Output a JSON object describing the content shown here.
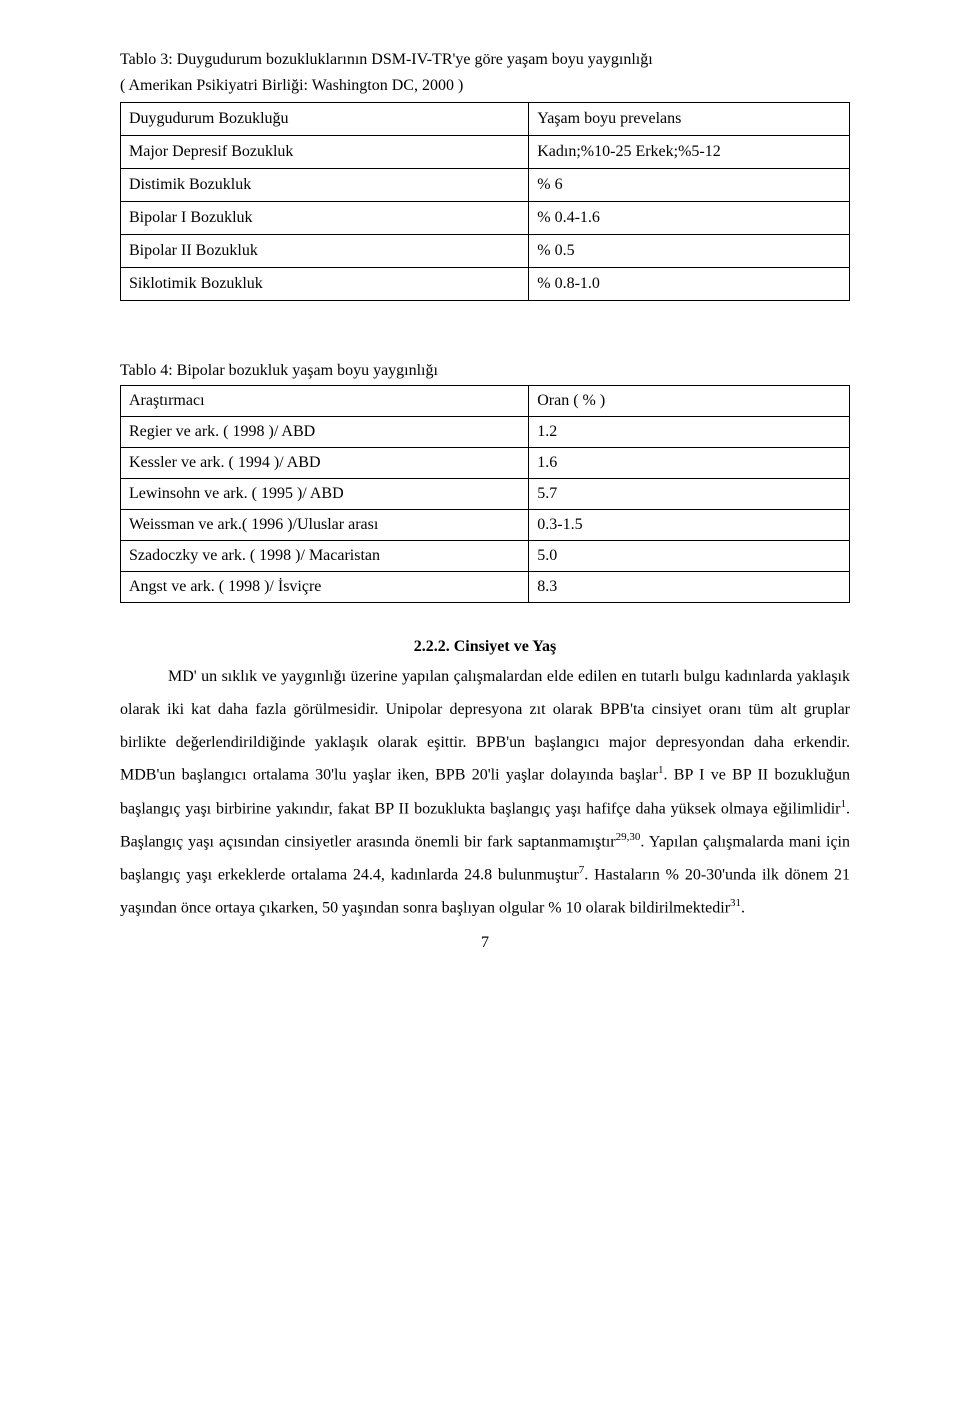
{
  "table3": {
    "heading": "Tablo 3: Duygudurum bozukluklarının DSM-IV-TR'ye göre yaşam boyu yaygınlığı",
    "subheading": "( Amerikan Psikiyatri Birliği: Washington DC, 2000 )",
    "rows": [
      {
        "c1": "Duygudurum Bozukluğu",
        "c2": "Yaşam boyu prevelans"
      },
      {
        "c1": "Major Depresif Bozukluk",
        "c2": "Kadın;%10-25 Erkek;%5-12"
      },
      {
        "c1": "Distimik Bozukluk",
        "c2": "% 6"
      },
      {
        "c1": "Bipolar I Bozukluk",
        "c2": "% 0.4-1.6"
      },
      {
        "c1": "Bipolar II Bozukluk",
        "c2": "% 0.5"
      },
      {
        "c1": "Siklotimik  Bozukluk",
        "c2": "% 0.8-1.0"
      }
    ]
  },
  "table4": {
    "heading": "Tablo 4: Bipolar bozukluk yaşam boyu yaygınlığı",
    "rows": [
      {
        "c1": "Araştırmacı",
        "c2": "Oran ( % )"
      },
      {
        "c1": "Regier ve ark. ( 1998 )/ ABD",
        "c2": "1.2"
      },
      {
        "c1": "Kessler ve ark. ( 1994 )/ ABD",
        "c2": "1.6"
      },
      {
        "c1": "Lewinsohn ve ark. ( 1995 )/ ABD",
        "c2": "5.7"
      },
      {
        "c1": "Weissman ve ark.( 1996 )/Uluslar arası",
        "c2": "0.3-1.5"
      },
      {
        "c1": "Szadoczky ve ark. ( 1998 )/ Macaristan",
        "c2": "5.0"
      },
      {
        "c1": "Angst ve ark. ( 1998 )/ İsviçre",
        "c2": "8.3"
      }
    ]
  },
  "section": {
    "title": "2.2.2. Cinsiyet ve Yaş",
    "para1_a": "MD' un sıklık ve yaygınlığı üzerine yapılan çalışmalardan elde edilen en tutarlı bulgu kadınlarda yaklaşık olarak iki kat daha fazla görülmesidir. Unipolar depresyona zıt olarak BPB'ta cinsiyet oranı tüm alt gruplar birlikte değerlendirildiğinde yaklaşık olarak eşittir. BPB'un başlangıcı major depresyondan daha erkendir. MDB'un başlangıcı ortalama 30'lu yaşlar iken, BPB 20'li yaşlar dolayında başlar",
    "sup1": "1",
    "para1_b": ". BP I ve BP II bozukluğun başlangıç yaşı birbirine yakındır, fakat BP II bozuklukta başlangıç yaşı hafifçe daha yüksek olmaya eğilimlidir",
    "sup2": "1",
    "para1_c": ". Başlangıç yaşı açısından cinsiyetler arasında önemli bir fark saptanmamıştır",
    "sup3": "29,30",
    "para1_d": ". Yapılan çalışmalarda mani için başlangıç yaşı erkeklerde ortalama 24.4, kadınlarda 24.8 bulunmuştur",
    "sup4": "7",
    "para1_e": ". Hastaların % 20-30'unda ilk dönem 21 yaşından önce ortaya çıkarken, 50 yaşından sonra başlıyan olgular % 10 olarak bildirilmektedir",
    "sup5": "31",
    "para1_f": "."
  },
  "pagenum": "7"
}
